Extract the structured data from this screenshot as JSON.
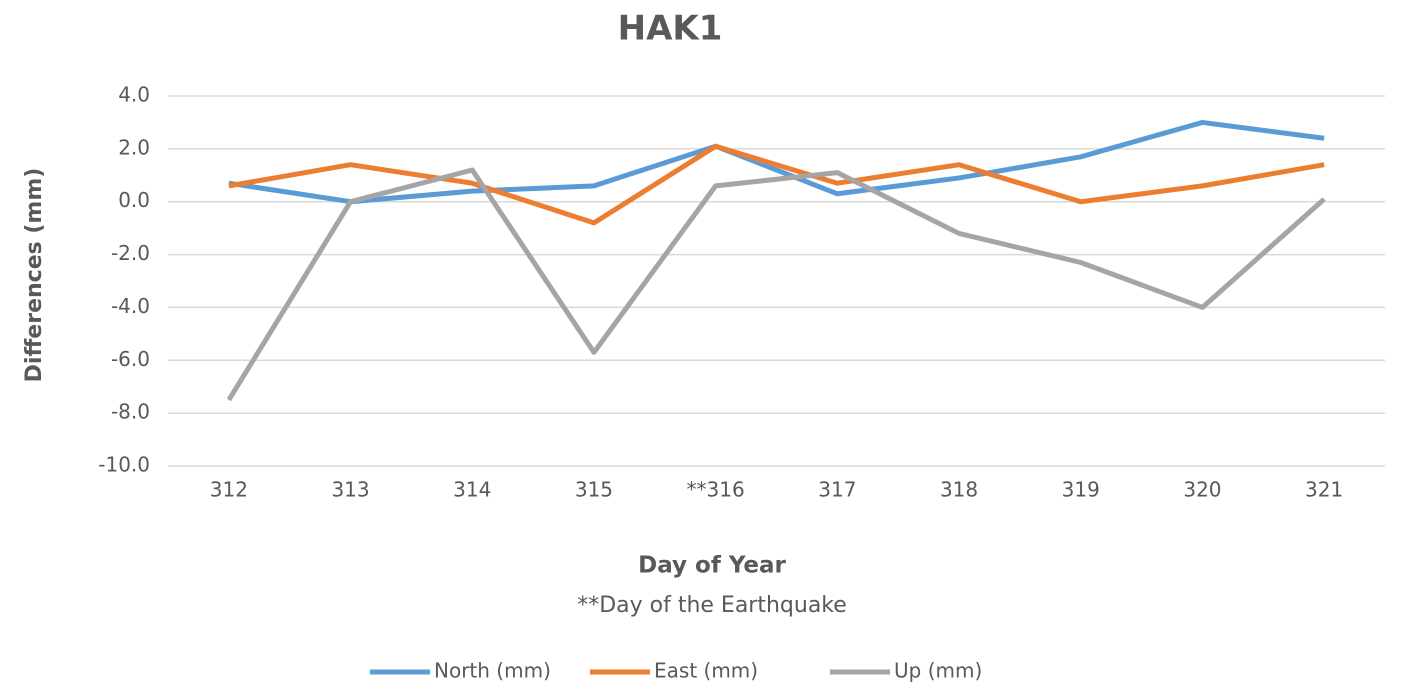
{
  "chart_data": {
    "type": "line",
    "title": "HAK1",
    "x_label": "Day of Year",
    "y_label": "Differences (mm)",
    "annotation": "**Day of the Earthquake",
    "categories": [
      "312",
      "313",
      "314",
      "315",
      "**316",
      "317",
      "318",
      "319",
      "320",
      "321"
    ],
    "series": [
      {
        "name": "North (mm)",
        "color": "#5b9bd5",
        "values": [
          0.7,
          0.0,
          0.4,
          0.6,
          2.1,
          0.3,
          0.9,
          1.7,
          3.0,
          2.4
        ]
      },
      {
        "name": "East (mm)",
        "color": "#ed7d31",
        "values": [
          0.6,
          1.4,
          0.7,
          -0.8,
          2.1,
          0.7,
          1.4,
          0.0,
          0.6,
          1.4
        ]
      },
      {
        "name": "Up (mm)",
        "color": "#a5a5a5",
        "values": [
          -7.5,
          0.0,
          1.2,
          -5.7,
          0.6,
          1.1,
          -1.2,
          -2.3,
          -4.0,
          0.1
        ]
      }
    ],
    "ylim": [
      -10,
      4
    ],
    "yticks": [
      {
        "value": -10,
        "label": "-10.0"
      },
      {
        "value": -8,
        "label": "-8.0"
      },
      {
        "value": -6,
        "label": "-6.0"
      },
      {
        "value": -4,
        "label": "-4.0"
      },
      {
        "value": -2,
        "label": "-2.0"
      },
      {
        "value": 0,
        "label": "0.0"
      },
      {
        "value": 2,
        "label": "2.0"
      },
      {
        "value": 4,
        "label": "4.0"
      }
    ],
    "grid": true,
    "legend": "bottom"
  }
}
